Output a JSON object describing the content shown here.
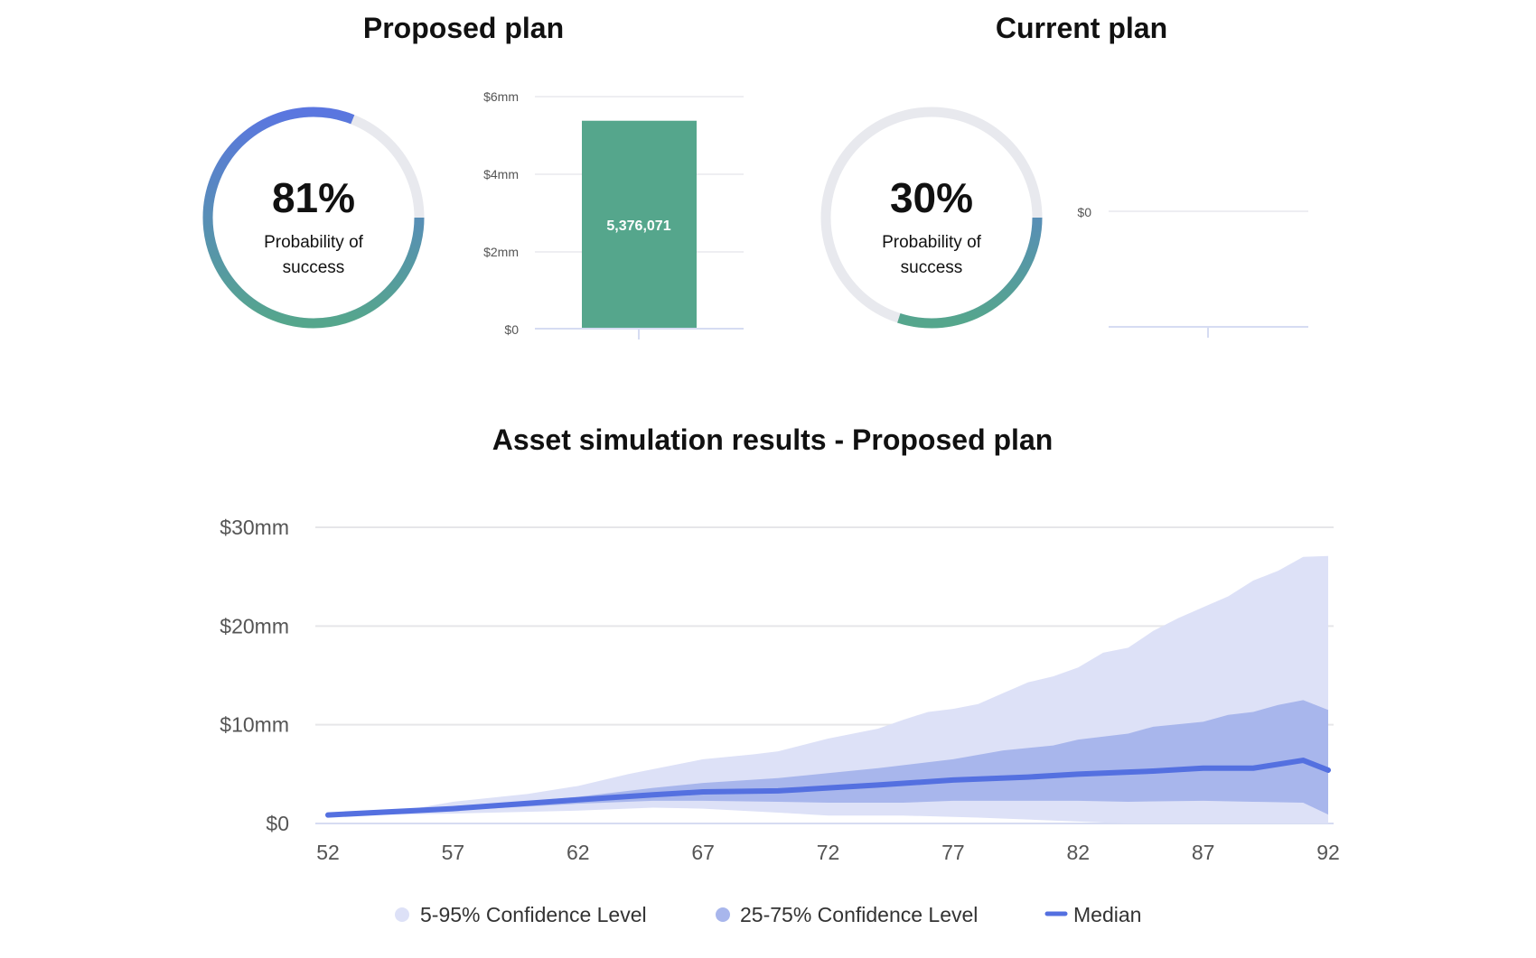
{
  "proposed": {
    "title": "Proposed plan",
    "probability_pct": 81,
    "probability_label": "81%",
    "caption_line1": "Probability of",
    "caption_line2": "success",
    "bar_chart": {
      "type": "bar",
      "y_ticks": [
        "$0",
        "$2mm",
        "$4mm",
        "$6mm"
      ],
      "ylim": [
        0,
        6000000
      ],
      "value": 5376071,
      "value_label": "5,376,071",
      "color": "#55a68c"
    }
  },
  "current": {
    "title": "Current plan",
    "probability_pct": 30,
    "probability_label": "30%",
    "caption_line1": "Probability of",
    "caption_line2": "success",
    "bar_chart": {
      "type": "bar",
      "y_ticks": [
        "$0"
      ],
      "value": 0
    }
  },
  "colors": {
    "gauge_start": "#5a76e0",
    "gauge_end": "#55a68c",
    "gauge_track": "#e8e9ee",
    "band_outer": "#dde1f7",
    "band_inner": "#a8b6ec",
    "median": "#5470e0"
  },
  "chart_data": {
    "type": "area",
    "title": "Asset simulation results - Proposed plan",
    "xlabel": "",
    "ylabel": "",
    "xlim": [
      52,
      92
    ],
    "ylim": [
      0,
      30
    ],
    "grid": true,
    "x_ticks": [
      "52",
      "57",
      "62",
      "67",
      "72",
      "77",
      "82",
      "87",
      "92"
    ],
    "y_ticks": [
      "$0",
      "$10mm",
      "$20mm",
      "$30mm"
    ],
    "y_tick_values": [
      0,
      10,
      20,
      30
    ],
    "units": "$mm",
    "series": [
      {
        "name": "5-95% Confidence Level",
        "upper": [
          [
            52,
            0.9
          ],
          [
            55,
            1.3
          ],
          [
            57,
            2.2
          ],
          [
            60,
            3.0
          ],
          [
            62,
            3.8
          ],
          [
            64,
            5.0
          ],
          [
            65,
            5.5
          ],
          [
            67,
            6.5
          ],
          [
            69,
            7.0
          ],
          [
            70,
            7.3
          ],
          [
            72,
            8.6
          ],
          [
            74,
            9.6
          ],
          [
            75,
            10.5
          ],
          [
            76,
            11.3
          ],
          [
            77,
            11.6
          ],
          [
            78,
            12.1
          ],
          [
            79,
            13.2
          ],
          [
            80,
            14.3
          ],
          [
            81,
            14.9
          ],
          [
            82,
            15.8
          ],
          [
            83,
            17.3
          ],
          [
            84,
            17.8
          ],
          [
            85,
            19.5
          ],
          [
            86,
            20.8
          ],
          [
            87,
            21.9
          ],
          [
            88,
            23.0
          ],
          [
            89,
            24.6
          ],
          [
            90,
            25.6
          ],
          [
            91,
            27.0
          ],
          [
            92,
            27.1
          ]
        ],
        "lower": [
          [
            52,
            0.8
          ],
          [
            57,
            1.0
          ],
          [
            62,
            1.3
          ],
          [
            65,
            1.6
          ],
          [
            67,
            1.5
          ],
          [
            70,
            1.1
          ],
          [
            72,
            0.8
          ],
          [
            75,
            0.8
          ],
          [
            78,
            0.6
          ],
          [
            80,
            0.4
          ],
          [
            82,
            0.2
          ],
          [
            84,
            0
          ],
          [
            92,
            0
          ]
        ]
      },
      {
        "name": "25-75% Confidence Level",
        "upper": [
          [
            52,
            0.9
          ],
          [
            57,
            1.6
          ],
          [
            62,
            2.7
          ],
          [
            65,
            3.6
          ],
          [
            67,
            4.1
          ],
          [
            70,
            4.6
          ],
          [
            72,
            5.1
          ],
          [
            74,
            5.6
          ],
          [
            77,
            6.5
          ],
          [
            79,
            7.4
          ],
          [
            81,
            7.9
          ],
          [
            82,
            8.5
          ],
          [
            84,
            9.1
          ],
          [
            85,
            9.8
          ],
          [
            87,
            10.3
          ],
          [
            88,
            11.0
          ],
          [
            89,
            11.3
          ],
          [
            90,
            12.0
          ],
          [
            91,
            12.5
          ],
          [
            92,
            11.5
          ]
        ],
        "lower": [
          [
            52,
            0.8
          ],
          [
            57,
            1.3
          ],
          [
            62,
            2.0
          ],
          [
            65,
            2.3
          ],
          [
            67,
            2.3
          ],
          [
            70,
            2.2
          ],
          [
            72,
            2.1
          ],
          [
            75,
            2.1
          ],
          [
            77,
            2.3
          ],
          [
            80,
            2.3
          ],
          [
            82,
            2.3
          ],
          [
            84,
            2.2
          ],
          [
            87,
            2.3
          ],
          [
            89,
            2.2
          ],
          [
            91,
            2.1
          ],
          [
            92,
            0.9
          ]
        ]
      },
      {
        "name": "Median",
        "values": [
          [
            52,
            0.86
          ],
          [
            57,
            1.5
          ],
          [
            62,
            2.4
          ],
          [
            65,
            2.9
          ],
          [
            67,
            3.2
          ],
          [
            70,
            3.3
          ],
          [
            72,
            3.6
          ],
          [
            74,
            3.9
          ],
          [
            77,
            4.4
          ],
          [
            80,
            4.7
          ],
          [
            82,
            5.0
          ],
          [
            84,
            5.2
          ],
          [
            85,
            5.3
          ],
          [
            87,
            5.6
          ],
          [
            89,
            5.6
          ],
          [
            91,
            6.4
          ],
          [
            92,
            5.4
          ]
        ]
      }
    ],
    "legend": [
      "5-95% Confidence Level",
      "25-75% Confidence Level",
      "Median"
    ],
    "legend_position": "bottom"
  }
}
